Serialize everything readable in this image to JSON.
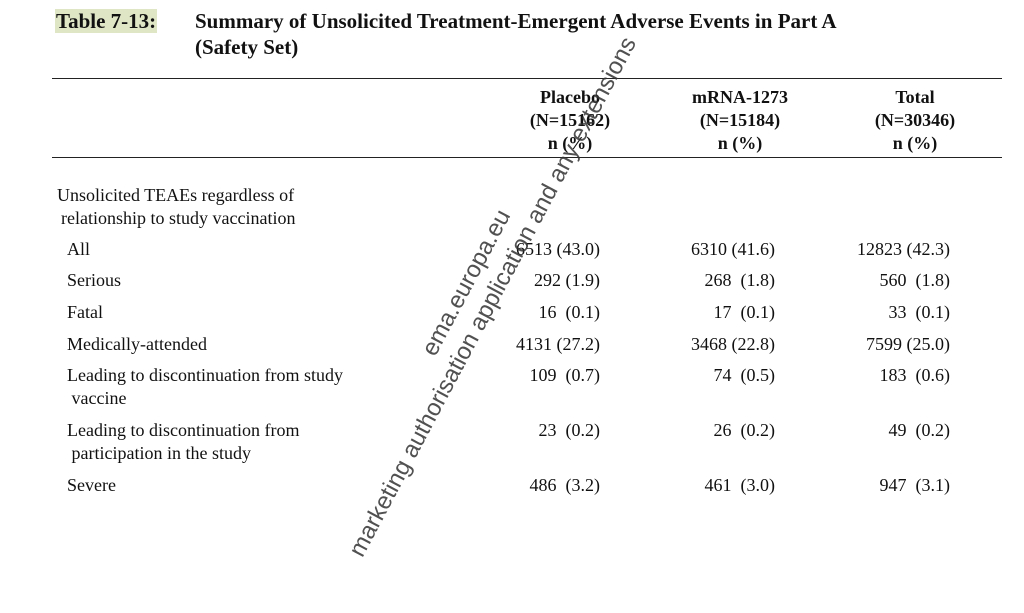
{
  "table": {
    "number": "Table 7-13:",
    "title_line1": "Summary of Unsolicited Treatment-Emergent Adverse Events in Part A",
    "title_line2": "(Safety Set)",
    "columns": [
      {
        "name": "Placebo",
        "n": "(N=15162)",
        "unit": "n (%)"
      },
      {
        "name": "mRNA-1273",
        "n": "(N=15184)",
        "unit": "n (%)"
      },
      {
        "name": "Total",
        "n": "(N=30346)",
        "unit": "n (%)"
      }
    ],
    "section_line1": "Unsolicited TEAEs regardless of",
    "section_line2": "relationship to study vaccination",
    "rows": [
      {
        "label": "All",
        "label2": "",
        "values": [
          "6513 (43.0)",
          "6310 (41.6)",
          "12823 (42.3)"
        ]
      },
      {
        "label": "Serious",
        "label2": "",
        "values": [
          "292 (1.9)",
          "268  (1.8)",
          "560  (1.8)"
        ]
      },
      {
        "label": "Fatal",
        "label2": "",
        "values": [
          "16  (0.1)",
          "17  (0.1)",
          "33  (0.1)"
        ]
      },
      {
        "label": "Medically-attended",
        "label2": "",
        "values": [
          "4131 (27.2)",
          "3468 (22.8)",
          "7599 (25.0)"
        ]
      },
      {
        "label": "Leading to discontinuation from study",
        "label2": " vaccine",
        "values": [
          "109  (0.7)",
          "74  (0.5)",
          "183  (0.6)"
        ]
      },
      {
        "label": "Leading to discontinuation from",
        "label2": " participation in the study",
        "values": [
          "23  (0.2)",
          "26  (0.2)",
          "49  (0.2)"
        ]
      },
      {
        "label": "Severe",
        "label2": "",
        "values": [
          "486  (3.2)",
          "461  (3.0)",
          "947  (3.1)"
        ]
      }
    ]
  },
  "watermark": {
    "line1": "ema.europa.eu",
    "line2": "marketing authorisation application and any extensions"
  }
}
